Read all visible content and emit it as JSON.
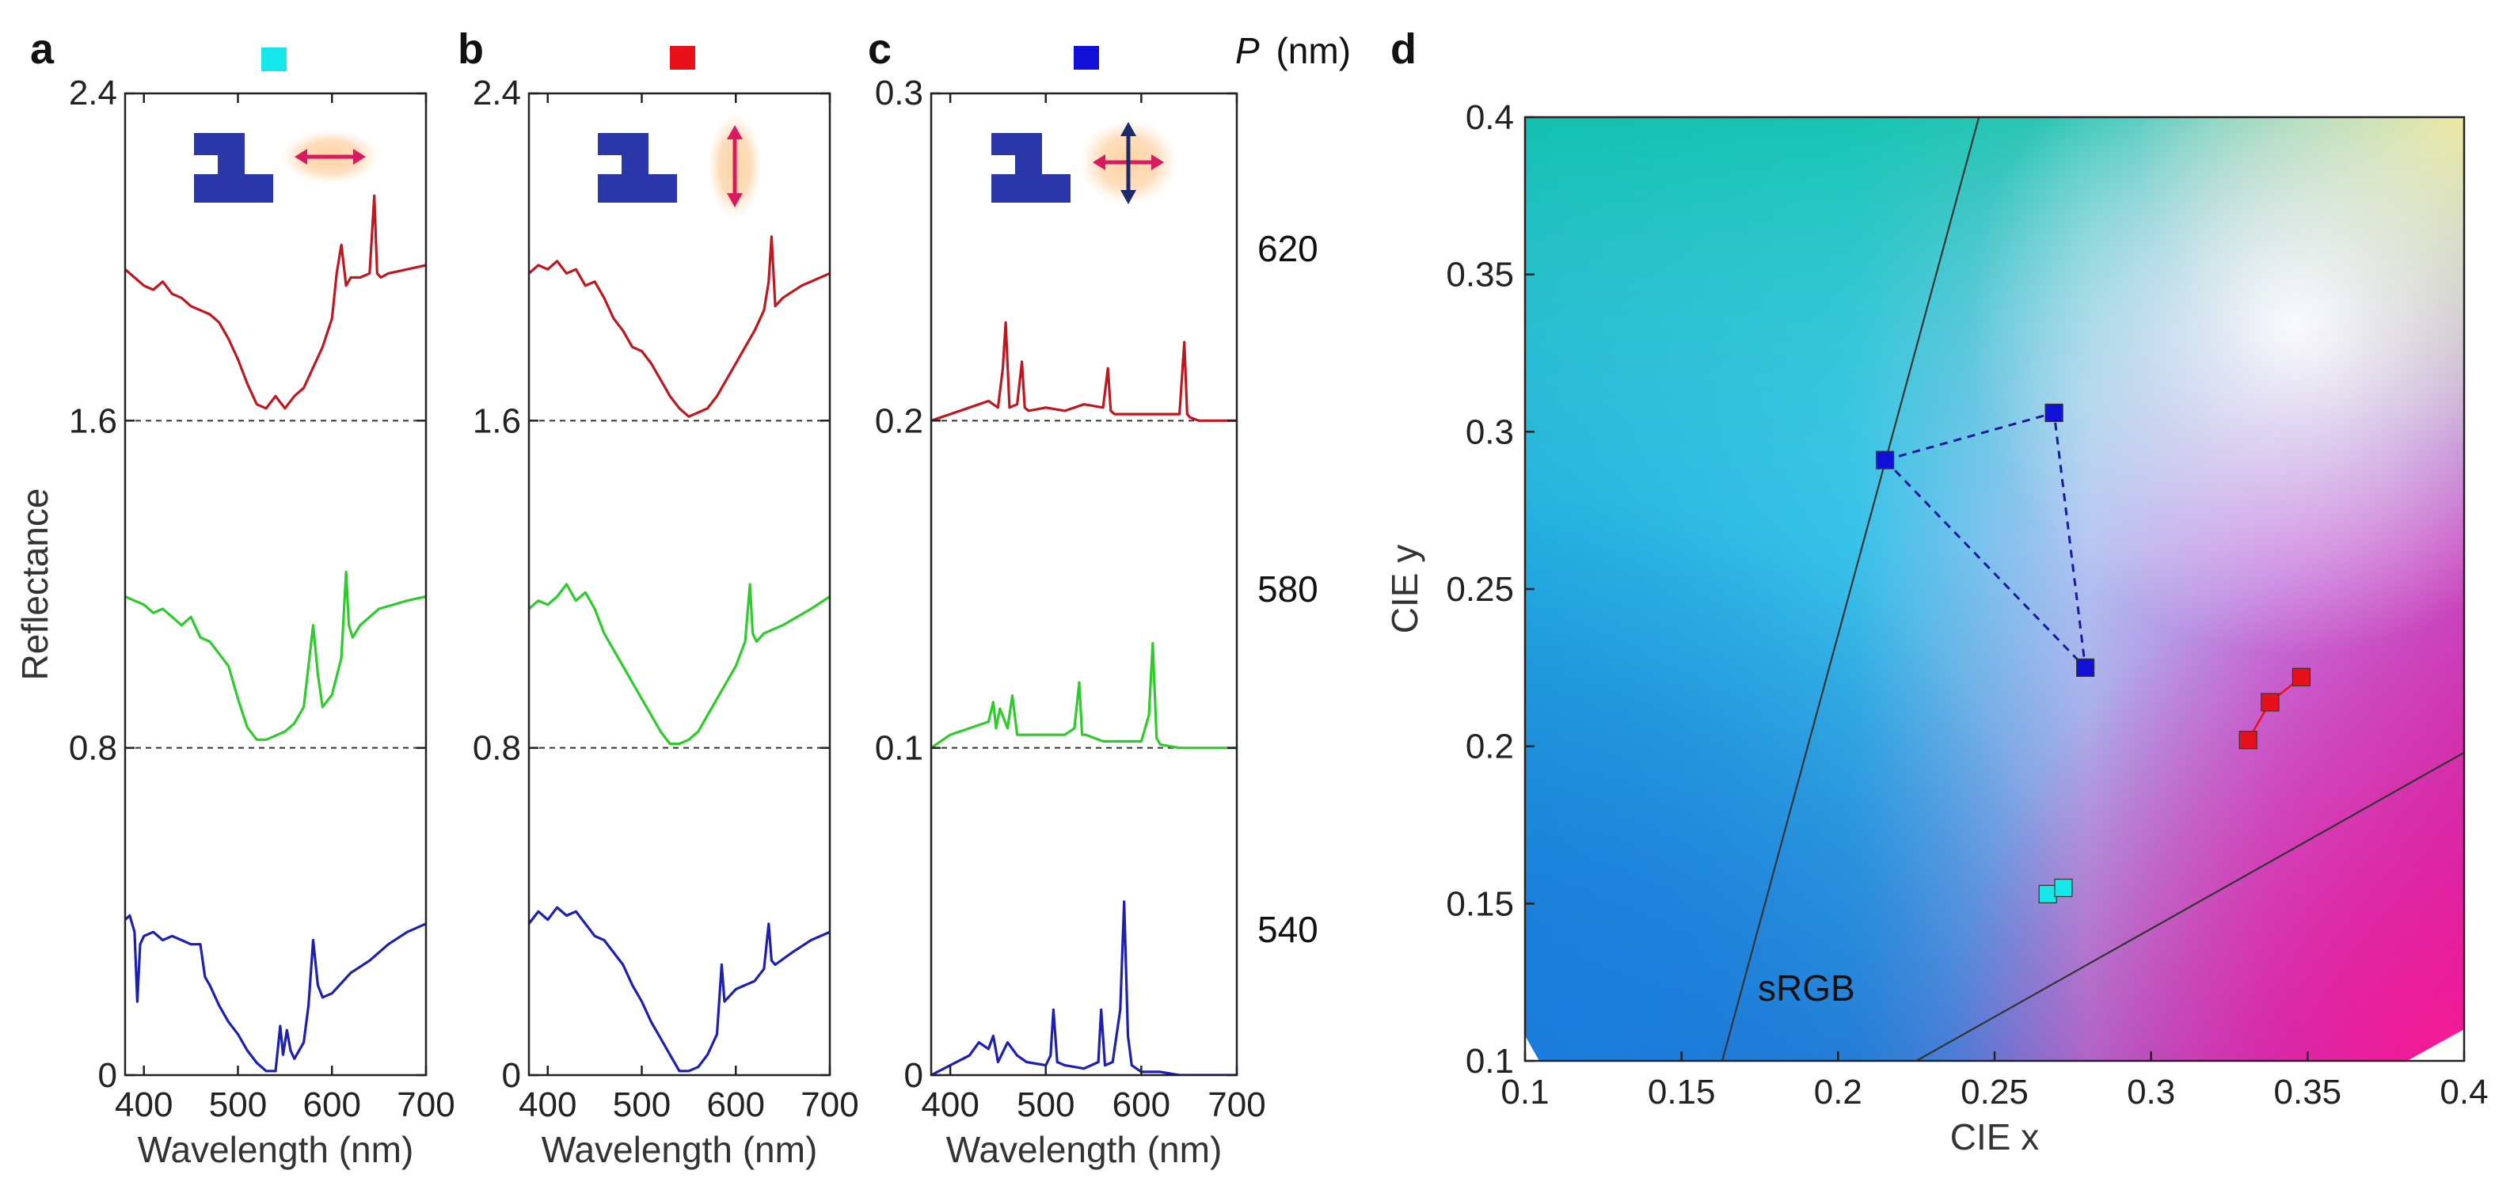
{
  "panel_labels": {
    "a": "a",
    "b": "b",
    "c": "c",
    "d": "d"
  },
  "period_header": {
    "symbol": "P",
    "unit": "(nm)"
  },
  "period_values": [
    "620",
    "580",
    "540"
  ],
  "srgb_label": "sRGB",
  "colors": {
    "red": "#c0171f",
    "green": "#2ecc2a",
    "blue": "#1c1fb0",
    "cyan": "#17e6ea",
    "marker_red": "#e8101a",
    "marker_blue": "#1010d8",
    "arrow": "#d81b60",
    "zshape": "#2b36a8",
    "dash": "#1a1a9a"
  },
  "chart_data": [
    {
      "type": "line",
      "panel": "a",
      "legend_marker": "cyan",
      "polarization": "horizontal",
      "xlabel": "Wavelength (nm)",
      "ylabel": "Reflectance",
      "xlim": [
        380,
        700
      ],
      "ylim": [
        0,
        2.4
      ],
      "xticks": [
        "400",
        "500",
        "600",
        "700"
      ],
      "yticks": [
        "0",
        "0.8",
        "1.6",
        "2.4"
      ],
      "baselines": [
        0.8,
        1.6
      ],
      "series": [
        {
          "name": "620",
          "color": "red",
          "offset": 1.6,
          "x": [
            380,
            390,
            400,
            410,
            420,
            430,
            440,
            450,
            460,
            470,
            480,
            490,
            500,
            510,
            520,
            530,
            540,
            550,
            560,
            570,
            580,
            590,
            600,
            605,
            610,
            615,
            620,
            630,
            640,
            645,
            648,
            652,
            660,
            680,
            700
          ],
          "y": [
            0.37,
            0.35,
            0.33,
            0.32,
            0.34,
            0.31,
            0.3,
            0.28,
            0.27,
            0.26,
            0.24,
            0.2,
            0.15,
            0.09,
            0.04,
            0.03,
            0.06,
            0.03,
            0.06,
            0.08,
            0.13,
            0.18,
            0.25,
            0.36,
            0.43,
            0.33,
            0.35,
            0.35,
            0.36,
            0.55,
            0.36,
            0.35,
            0.36,
            0.37,
            0.38
          ]
        },
        {
          "name": "580",
          "color": "green",
          "offset": 0.8,
          "x": [
            380,
            390,
            400,
            410,
            420,
            430,
            440,
            450,
            460,
            470,
            480,
            490,
            500,
            510,
            520,
            530,
            540,
            550,
            560,
            570,
            575,
            580,
            585,
            590,
            600,
            610,
            615,
            618,
            622,
            630,
            650,
            680,
            700
          ],
          "y": [
            0.37,
            0.36,
            0.35,
            0.33,
            0.34,
            0.32,
            0.3,
            0.32,
            0.27,
            0.26,
            0.23,
            0.2,
            0.12,
            0.05,
            0.02,
            0.02,
            0.03,
            0.04,
            0.06,
            0.1,
            0.2,
            0.3,
            0.18,
            0.1,
            0.13,
            0.22,
            0.43,
            0.3,
            0.27,
            0.3,
            0.34,
            0.36,
            0.37
          ]
        },
        {
          "name": "540",
          "color": "blue",
          "offset": 0.0,
          "x": [
            380,
            385,
            390,
            393,
            396,
            400,
            410,
            420,
            430,
            440,
            450,
            460,
            465,
            470,
            480,
            490,
            500,
            510,
            520,
            530,
            540,
            545,
            548,
            552,
            556,
            560,
            570,
            575,
            580,
            585,
            590,
            600,
            620,
            640,
            660,
            680,
            700
          ],
          "y": [
            0.38,
            0.39,
            0.35,
            0.18,
            0.32,
            0.34,
            0.35,
            0.33,
            0.34,
            0.33,
            0.32,
            0.32,
            0.24,
            0.22,
            0.17,
            0.13,
            0.1,
            0.06,
            0.03,
            0.01,
            0.01,
            0.12,
            0.05,
            0.11,
            0.06,
            0.04,
            0.08,
            0.17,
            0.33,
            0.22,
            0.19,
            0.2,
            0.25,
            0.28,
            0.32,
            0.35,
            0.37
          ]
        }
      ]
    },
    {
      "type": "line",
      "panel": "b",
      "legend_marker": "red",
      "polarization": "vertical",
      "xlabel": "Wavelength (nm)",
      "ylabel": "",
      "xlim": [
        380,
        700
      ],
      "ylim": [
        0,
        2.4
      ],
      "xticks": [
        "400",
        "500",
        "600",
        "700"
      ],
      "yticks": [
        "0",
        "0.8",
        "1.6",
        "2.4"
      ],
      "baselines": [
        0.8,
        1.6
      ],
      "series": [
        {
          "name": "620",
          "color": "red",
          "offset": 1.6,
          "x": [
            380,
            390,
            400,
            410,
            420,
            430,
            440,
            450,
            460,
            470,
            480,
            490,
            500,
            510,
            520,
            530,
            540,
            550,
            560,
            570,
            580,
            590,
            600,
            610,
            620,
            630,
            635,
            638,
            642,
            650,
            670,
            700
          ],
          "y": [
            0.36,
            0.38,
            0.37,
            0.39,
            0.36,
            0.37,
            0.33,
            0.34,
            0.3,
            0.25,
            0.22,
            0.18,
            0.17,
            0.14,
            0.1,
            0.06,
            0.03,
            0.01,
            0.02,
            0.03,
            0.06,
            0.1,
            0.14,
            0.18,
            0.22,
            0.27,
            0.34,
            0.45,
            0.28,
            0.3,
            0.33,
            0.36
          ]
        },
        {
          "name": "580",
          "color": "green",
          "offset": 0.8,
          "x": [
            380,
            390,
            400,
            410,
            420,
            430,
            440,
            450,
            460,
            470,
            480,
            490,
            500,
            510,
            520,
            530,
            540,
            550,
            560,
            570,
            580,
            590,
            600,
            610,
            615,
            618,
            622,
            630,
            650,
            680,
            700
          ],
          "y": [
            0.34,
            0.36,
            0.35,
            0.37,
            0.4,
            0.36,
            0.38,
            0.34,
            0.28,
            0.24,
            0.2,
            0.16,
            0.12,
            0.08,
            0.04,
            0.01,
            0.01,
            0.02,
            0.04,
            0.08,
            0.12,
            0.16,
            0.2,
            0.26,
            0.4,
            0.28,
            0.26,
            0.28,
            0.3,
            0.34,
            0.37
          ]
        },
        {
          "name": "540",
          "color": "blue",
          "offset": 0.0,
          "x": [
            380,
            390,
            400,
            410,
            420,
            430,
            440,
            450,
            460,
            470,
            480,
            490,
            500,
            510,
            520,
            530,
            540,
            550,
            560,
            570,
            580,
            585,
            588,
            592,
            600,
            610,
            620,
            630,
            635,
            638,
            642,
            660,
            680,
            700
          ],
          "y": [
            0.37,
            0.4,
            0.38,
            0.41,
            0.39,
            0.4,
            0.37,
            0.34,
            0.33,
            0.3,
            0.27,
            0.22,
            0.18,
            0.13,
            0.09,
            0.05,
            0.01,
            0.01,
            0.02,
            0.05,
            0.1,
            0.27,
            0.18,
            0.19,
            0.21,
            0.22,
            0.23,
            0.26,
            0.37,
            0.28,
            0.27,
            0.3,
            0.33,
            0.35
          ]
        }
      ]
    },
    {
      "type": "line",
      "panel": "c",
      "legend_marker": "blue",
      "polarization": "both",
      "xlabel": "Wavelength (nm)",
      "ylabel": "",
      "xlim": [
        380,
        700
      ],
      "ylim": [
        0,
        0.3
      ],
      "xticks": [
        "400",
        "500",
        "600",
        "700"
      ],
      "yticks": [
        "0",
        "0.1",
        "0.2",
        "0.3"
      ],
      "baselines": [
        0.1,
        0.2
      ],
      "series": [
        {
          "name": "620",
          "color": "red",
          "offset": 0.2,
          "x": [
            380,
            400,
            420,
            440,
            450,
            455,
            458,
            462,
            470,
            475,
            478,
            482,
            500,
            520,
            540,
            560,
            565,
            568,
            572,
            600,
            630,
            640,
            645,
            648,
            651,
            660,
            700
          ],
          "y": [
            0.0,
            0.002,
            0.004,
            0.006,
            0.004,
            0.016,
            0.03,
            0.004,
            0.005,
            0.018,
            0.004,
            0.003,
            0.004,
            0.003,
            0.005,
            0.004,
            0.016,
            0.003,
            0.002,
            0.002,
            0.002,
            0.002,
            0.024,
            0.002,
            0.001,
            0.0,
            0.0
          ]
        },
        {
          "name": "580",
          "color": "green",
          "offset": 0.1,
          "x": [
            380,
            400,
            420,
            440,
            445,
            448,
            452,
            460,
            465,
            470,
            500,
            520,
            530,
            535,
            538,
            542,
            560,
            600,
            608,
            612,
            616,
            620,
            640,
            660,
            700
          ],
          "y": [
            0.0,
            0.004,
            0.006,
            0.008,
            0.014,
            0.006,
            0.012,
            0.006,
            0.016,
            0.004,
            0.004,
            0.004,
            0.006,
            0.02,
            0.004,
            0.004,
            0.002,
            0.002,
            0.01,
            0.032,
            0.003,
            0.001,
            0.0,
            0.0,
            0.0
          ]
        },
        {
          "name": "540",
          "color": "blue",
          "offset": 0.0,
          "x": [
            380,
            400,
            420,
            430,
            440,
            445,
            450,
            460,
            470,
            480,
            500,
            505,
            508,
            512,
            520,
            540,
            555,
            558,
            562,
            570,
            578,
            582,
            586,
            590,
            600,
            620,
            640,
            660,
            700
          ],
          "y": [
            0.0,
            0.003,
            0.006,
            0.01,
            0.008,
            0.012,
            0.004,
            0.01,
            0.006,
            0.004,
            0.003,
            0.006,
            0.02,
            0.004,
            0.003,
            0.002,
            0.004,
            0.02,
            0.003,
            0.004,
            0.02,
            0.053,
            0.012,
            0.003,
            0.001,
            0.001,
            0.0,
            0.0,
            0.0
          ]
        }
      ]
    },
    {
      "type": "scatter",
      "panel": "d",
      "title": "",
      "xlabel": "CIE x",
      "ylabel": "CIE y",
      "xlim": [
        0.1,
        0.4
      ],
      "ylim": [
        0.1,
        0.4
      ],
      "xticks": [
        "0.1",
        "0.15",
        "0.2",
        "0.25",
        "0.3",
        "0.35",
        "0.4"
      ],
      "yticks": [
        "0.1",
        "0.15",
        "0.2",
        "0.25",
        "0.3",
        "0.35",
        "0.4"
      ],
      "srgb_edges": [
        {
          "name": "green-blue edge",
          "x": [
            0.163,
            0.245
          ],
          "y": [
            0.1,
            0.4
          ]
        },
        {
          "name": "blue-red edge",
          "x": [
            0.225,
            0.4
          ],
          "y": [
            0.1,
            0.198
          ]
        }
      ],
      "series": [
        {
          "name": "blue",
          "color": "marker_blue",
          "closed": true,
          "x": [
            0.215,
            0.269,
            0.279
          ],
          "y": [
            0.291,
            0.306,
            0.225
          ]
        },
        {
          "name": "red",
          "color": "marker_red",
          "closed": false,
          "x": [
            0.331,
            0.338,
            0.348
          ],
          "y": [
            0.202,
            0.214,
            0.222
          ]
        },
        {
          "name": "cyan",
          "color": "cyan",
          "closed": false,
          "x": [
            0.267,
            0.272
          ],
          "y": [
            0.153,
            0.155
          ]
        }
      ]
    }
  ]
}
